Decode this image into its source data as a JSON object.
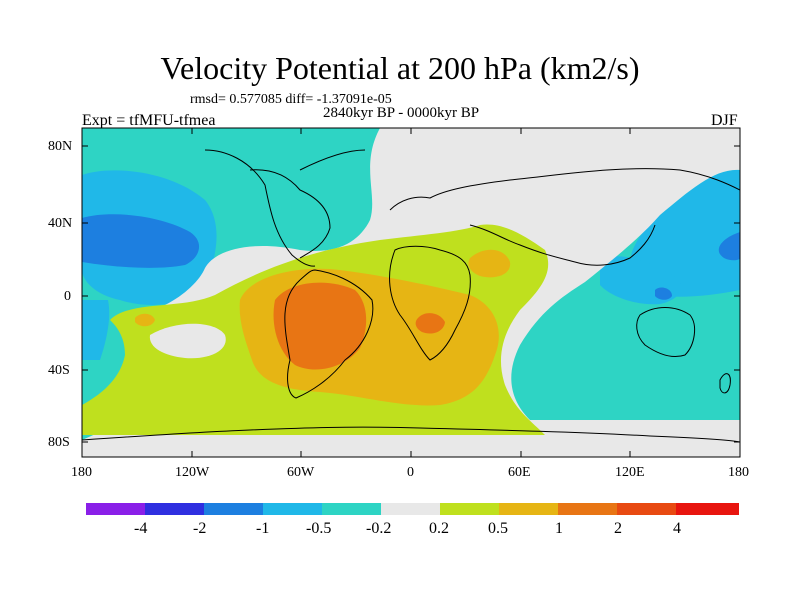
{
  "title": "Velocity Potential at 200 hPa (km2/s)",
  "stats_line": "rmsd= 0.577085 diff= -1.37091e-05",
  "period": "2840kyr BP - 0000kyr BP",
  "experiment": "Expt = tfMFU-tfmea",
  "season": "DJF",
  "lat_labels": [
    "80N",
    "40N",
    "0",
    "40S",
    "80S"
  ],
  "lon_labels": [
    "180",
    "120W",
    "60W",
    "0",
    "60E",
    "120E",
    "180"
  ],
  "colorbar": {
    "colors": [
      "#8a1fe8",
      "#2f2fe0",
      "#1d7fe0",
      "#20b8e8",
      "#2ed4c4",
      "#e8e8e8",
      "#bfe01e",
      "#e6b514",
      "#e87514",
      "#e84a12",
      "#e8150f"
    ],
    "labels": [
      "-4",
      "-2",
      "-1",
      "-0.5",
      "-0.2",
      "0.2",
      "0.5",
      "1",
      "2",
      "4"
    ]
  }
}
